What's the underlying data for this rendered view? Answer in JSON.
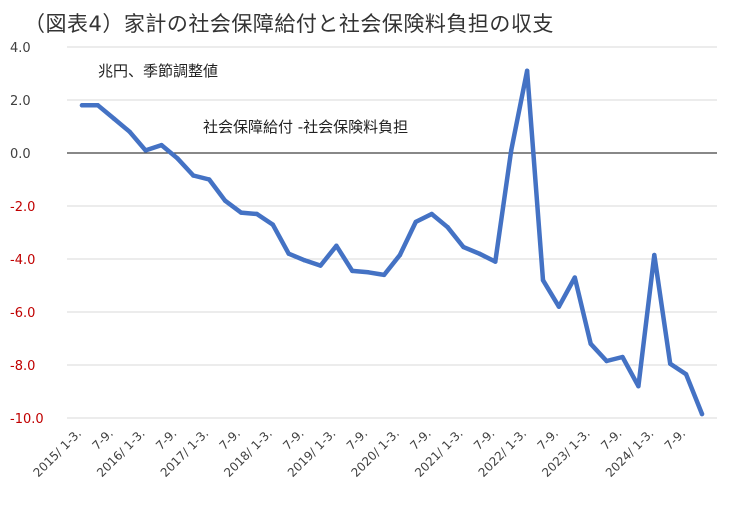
{
  "title": "（図表4）家計の社会保障給付と社会保険料負担の収支",
  "chart_data": {
    "type": "line",
    "title": "（図表4）家計の社会保障給付と社会保険料負担の収支",
    "unit_label": "兆円、季節調整値",
    "series_annotation": "社会保障給付 -社会保険料負担",
    "xlabel": "",
    "ylabel": "",
    "ylim": [
      -10,
      4
    ],
    "yticks": [
      {
        "value": 4,
        "label": "4.0"
      },
      {
        "value": 2,
        "label": "2.0"
      },
      {
        "value": 0,
        "label": "0.0"
      },
      {
        "value": -2,
        "label": "-2.0"
      },
      {
        "value": -4,
        "label": "-4.0"
      },
      {
        "value": -6,
        "label": "-6.0"
      },
      {
        "value": -8,
        "label": "-8.0"
      },
      {
        "value": -10,
        "label": "-10.0"
      }
    ],
    "negative_tick_color": "#c00000",
    "grid": true,
    "x_tick_labels": [
      {
        "index": 0,
        "label": "2015/ 1-3."
      },
      {
        "index": 2,
        "label": "7-9."
      },
      {
        "index": 4,
        "label": "2016/ 1-3."
      },
      {
        "index": 6,
        "label": "7-9."
      },
      {
        "index": 8,
        "label": "2017/ 1-3."
      },
      {
        "index": 10,
        "label": "7-9."
      },
      {
        "index": 12,
        "label": "2018/ 1-3."
      },
      {
        "index": 14,
        "label": "7-9."
      },
      {
        "index": 16,
        "label": "2019/ 1-3."
      },
      {
        "index": 18,
        "label": "7-9."
      },
      {
        "index": 20,
        "label": "2020/ 1-3."
      },
      {
        "index": 22,
        "label": "7-9."
      },
      {
        "index": 24,
        "label": "2021/ 1-3."
      },
      {
        "index": 26,
        "label": "7-9."
      },
      {
        "index": 28,
        "label": "2022/ 1-3."
      },
      {
        "index": 30,
        "label": "7-9."
      },
      {
        "index": 32,
        "label": "2023/ 1-3."
      },
      {
        "index": 34,
        "label": "7-9."
      },
      {
        "index": 36,
        "label": "2024/ 1-3."
      },
      {
        "index": 38,
        "label": "7-9."
      }
    ],
    "series": [
      {
        "color": "#4472c4",
        "values": [
          1.8,
          1.8,
          1.3,
          0.8,
          0.1,
          0.3,
          -0.2,
          -0.85,
          -1.0,
          -1.8,
          -2.25,
          -2.3,
          -2.7,
          -3.8,
          -4.05,
          -4.25,
          -3.5,
          -4.45,
          -4.5,
          -4.6,
          -3.85,
          -2.6,
          -2.3,
          -2.8,
          -3.55,
          -3.8,
          -4.1,
          0.1,
          3.1,
          -4.8,
          -5.8,
          -4.7,
          -7.2,
          -7.85,
          -7.7,
          -8.8,
          -3.85,
          -7.95,
          -8.35,
          -9.85
        ]
      }
    ]
  }
}
